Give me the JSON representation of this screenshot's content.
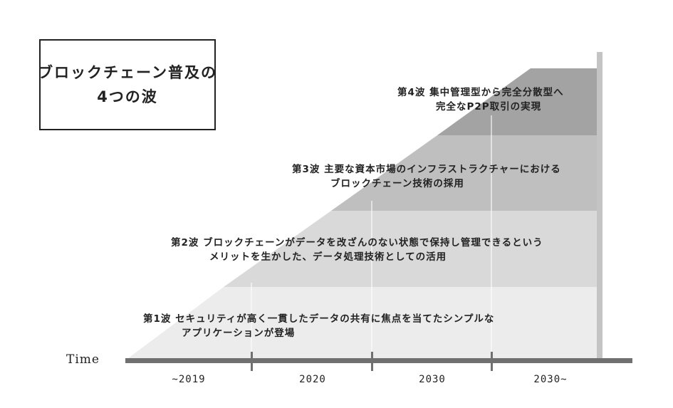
{
  "title": {
    "line1": "ブロックチェーン普及の",
    "line2": "4つの波"
  },
  "waves": [
    {
      "label": "第1波",
      "line1": "セキュリティが高く一貫したデータの共有に焦点を当てたシンプルな",
      "line2": "アプリケーションが登場",
      "color": "#ececec"
    },
    {
      "label": "第2波",
      "line1": "ブロックチェーンがデータを改ざんのない状態で保持し管理できるという",
      "line2": "メリットを生かした、データ処理技術としての活用",
      "color": "#d9d9d9"
    },
    {
      "label": "第3波",
      "line1": "主要な資本市場のインフラストラクチャーにおける",
      "line2": "ブロックチェーン技術の採用",
      "color": "#bfbfbf"
    },
    {
      "label": "第4波",
      "line1": "集中管理型から完全分散型へ",
      "line2": "完全なP2P取引の実現",
      "color": "#a3a3a3"
    }
  ],
  "axis": {
    "label": "Time",
    "periods": [
      "~2019",
      "2020",
      "2030",
      "2030~"
    ],
    "axis_color": "#707070",
    "vertical_bar_color": "#c4c4c4"
  }
}
